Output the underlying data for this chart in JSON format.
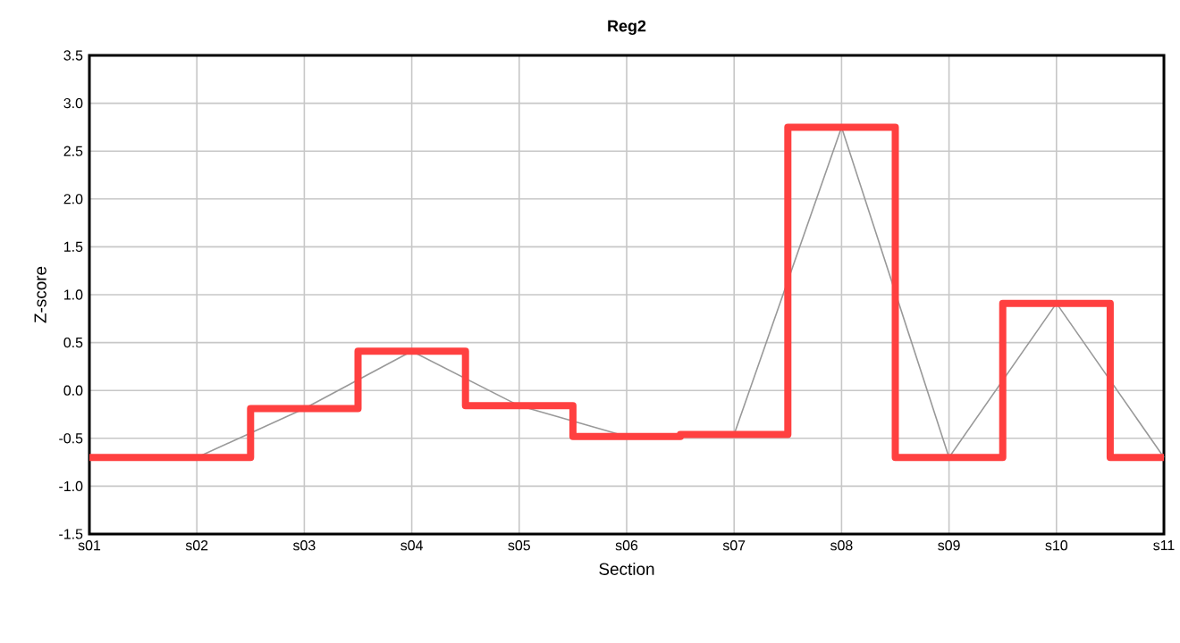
{
  "chart_data": {
    "type": "line",
    "title": "Reg2",
    "xlabel": "Section",
    "ylabel": "Z-score",
    "categories": [
      "s01",
      "s02",
      "s03",
      "s04",
      "s05",
      "s06",
      "s07",
      "s08",
      "s09",
      "s10",
      "s11"
    ],
    "series": [
      {
        "color": "#999999",
        "values": [
          -0.7,
          -0.7,
          -0.19,
          0.41,
          -0.16,
          -0.48,
          -0.46,
          2.75,
          -0.7,
          0.91,
          -0.7
        ]
      },
      {
        "type": "step",
        "color": "#ff4040",
        "values": [
          -0.7,
          -0.7,
          -0.19,
          0.41,
          -0.16,
          -0.48,
          -0.46,
          2.75,
          -0.7,
          0.91,
          -0.7
        ]
      }
    ],
    "ylim": [
      -1.5,
      3.5
    ],
    "yticks": [
      {
        "value": -1.5,
        "label": "-1.5"
      },
      {
        "value": -1.0,
        "label": "-1.0"
      },
      {
        "value": -0.5,
        "label": "-0.5"
      },
      {
        "value": 0,
        "label": "0.0"
      },
      {
        "value": 0.5,
        "label": "0.5"
      },
      {
        "value": 1.0,
        "label": "1.0"
      },
      {
        "value": 1.5,
        "label": "1.5"
      },
      {
        "value": 2.0,
        "label": "2.0"
      },
      {
        "value": 2.5,
        "label": "2.5"
      },
      {
        "value": 3.0,
        "label": "3.0"
      },
      {
        "value": 3.5,
        "label": "3.5"
      }
    ],
    "grid": true
  }
}
